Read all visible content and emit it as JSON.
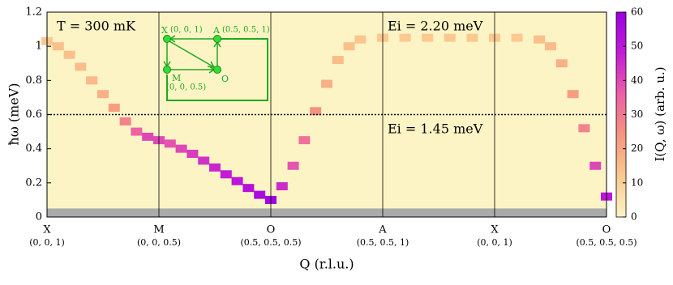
{
  "chart_data": {
    "type": "heatmap",
    "x_label": "Q (r.l.u.)",
    "y_label": "ħω (meV)",
    "colorbar_label": "I(Q, ω) (arb. u.)",
    "annotations": [
      "T = 300 mK",
      "Ei = 2.20 meV",
      "Ei = 1.45 meV"
    ],
    "xlim": [
      0,
      5
    ],
    "xticks": [
      {
        "value": 0,
        "label": "X"
      },
      {
        "value": 1,
        "label": "M"
      },
      {
        "value": 2,
        "label": "O"
      },
      {
        "value": 3,
        "label": "A"
      },
      {
        "value": 4,
        "label": "X"
      },
      {
        "value": 5,
        "label": "O"
      }
    ],
    "xtick_coords": [
      "(0, 0, 1)",
      "(0, 0, 0.5)",
      "(0.5, 0.5, 0.5)",
      "(0.5, 0.5, 1)",
      "(0, 0, 1)",
      "(0.5, 0.5, 0.5)"
    ],
    "ylim": [
      0,
      1.2
    ],
    "yticks": [
      0,
      0.2,
      0.4,
      0.6,
      0.8,
      1,
      1.2
    ],
    "clim": [
      0,
      60
    ],
    "cticks": [
      0,
      10,
      20,
      30,
      40,
      50,
      60
    ],
    "colormap": [
      "#fdf4c5",
      "#fbc98f",
      "#f6957e",
      "#ec5fa6",
      "#c31bd6",
      "#9a00e0"
    ],
    "hline": 0.6,
    "masked_below": 0.05,
    "x": [
      0,
      0.1,
      0.2,
      0.3,
      0.4,
      0.5,
      0.6,
      0.7,
      0.8,
      0.9,
      1.0,
      1.1,
      1.2,
      1.3,
      1.4,
      1.5,
      1.6,
      1.7,
      1.8,
      1.9,
      2.0,
      2.1,
      2.2,
      2.3,
      2.4,
      2.5,
      2.6,
      2.7,
      2.8,
      3.0,
      3.2,
      3.4,
      3.6,
      3.8,
      4.0,
      4.2,
      4.4,
      4.5,
      4.6,
      4.7,
      4.8,
      4.9,
      5.0
    ],
    "y": [
      1.03,
      1.0,
      0.95,
      0.88,
      0.8,
      0.72,
      0.64,
      0.56,
      0.5,
      0.47,
      0.45,
      0.43,
      0.4,
      0.37,
      0.33,
      0.29,
      0.25,
      0.21,
      0.17,
      0.13,
      0.1,
      0.18,
      0.3,
      0.45,
      0.62,
      0.78,
      0.92,
      1.0,
      1.04,
      1.05,
      1.05,
      1.05,
      1.05,
      1.05,
      1.05,
      1.05,
      1.04,
      1.0,
      0.9,
      0.72,
      0.52,
      0.3,
      0.12
    ],
    "values": [
      12,
      14,
      14,
      15,
      16,
      18,
      22,
      28,
      35,
      40,
      40,
      38,
      40,
      42,
      44,
      46,
      48,
      50,
      52,
      55,
      58,
      45,
      38,
      32,
      25,
      18,
      15,
      14,
      13,
      12,
      12,
      12,
      12,
      12,
      12,
      12,
      14,
      15,
      18,
      22,
      28,
      40,
      50
    ],
    "inset": {
      "nodes": [
        {
          "label": "X",
          "coord": "(0, 0, 1)"
        },
        {
          "label": "A",
          "coord": "(0.5, 0.5, 1)"
        },
        {
          "label": "M",
          "coord": "(0, 0, 0.5)"
        },
        {
          "label": "O"
        }
      ]
    }
  }
}
